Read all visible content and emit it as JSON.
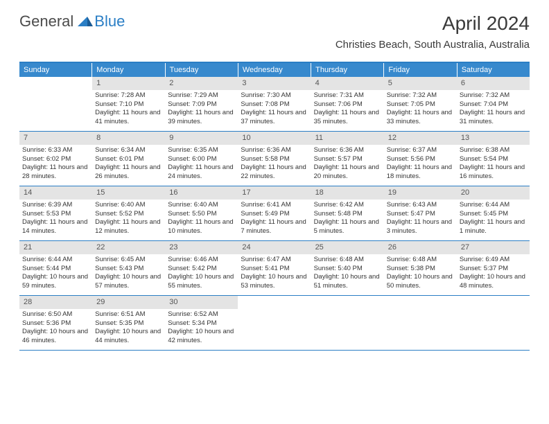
{
  "logo": {
    "textA": "General",
    "textB": "Blue"
  },
  "title": "April 2024",
  "location": "Christies Beach, South Australia, Australia",
  "colors": {
    "header_bg": "#3789cd",
    "header_text": "#ffffff",
    "border": "#2a7ec5",
    "daynum_bg": "#e4e4e4",
    "daynum_text": "#555555",
    "body_text": "#333333",
    "logo_gray": "#4b4b4b",
    "logo_blue": "#2a7ec5",
    "page_bg": "#ffffff"
  },
  "typography": {
    "title_fontsize": 28,
    "location_fontsize": 15,
    "dow_fontsize": 11,
    "daynum_fontsize": 11,
    "cell_fontsize": 9.5
  },
  "days_of_week": [
    "Sunday",
    "Monday",
    "Tuesday",
    "Wednesday",
    "Thursday",
    "Friday",
    "Saturday"
  ],
  "weeks": [
    [
      null,
      {
        "n": "1",
        "sr": "Sunrise: 7:28 AM",
        "ss": "Sunset: 7:10 PM",
        "dl": "Daylight: 11 hours and 41 minutes."
      },
      {
        "n": "2",
        "sr": "Sunrise: 7:29 AM",
        "ss": "Sunset: 7:09 PM",
        "dl": "Daylight: 11 hours and 39 minutes."
      },
      {
        "n": "3",
        "sr": "Sunrise: 7:30 AM",
        "ss": "Sunset: 7:08 PM",
        "dl": "Daylight: 11 hours and 37 minutes."
      },
      {
        "n": "4",
        "sr": "Sunrise: 7:31 AM",
        "ss": "Sunset: 7:06 PM",
        "dl": "Daylight: 11 hours and 35 minutes."
      },
      {
        "n": "5",
        "sr": "Sunrise: 7:32 AM",
        "ss": "Sunset: 7:05 PM",
        "dl": "Daylight: 11 hours and 33 minutes."
      },
      {
        "n": "6",
        "sr": "Sunrise: 7:32 AM",
        "ss": "Sunset: 7:04 PM",
        "dl": "Daylight: 11 hours and 31 minutes."
      }
    ],
    [
      {
        "n": "7",
        "sr": "Sunrise: 6:33 AM",
        "ss": "Sunset: 6:02 PM",
        "dl": "Daylight: 11 hours and 28 minutes."
      },
      {
        "n": "8",
        "sr": "Sunrise: 6:34 AM",
        "ss": "Sunset: 6:01 PM",
        "dl": "Daylight: 11 hours and 26 minutes."
      },
      {
        "n": "9",
        "sr": "Sunrise: 6:35 AM",
        "ss": "Sunset: 6:00 PM",
        "dl": "Daylight: 11 hours and 24 minutes."
      },
      {
        "n": "10",
        "sr": "Sunrise: 6:36 AM",
        "ss": "Sunset: 5:58 PM",
        "dl": "Daylight: 11 hours and 22 minutes."
      },
      {
        "n": "11",
        "sr": "Sunrise: 6:36 AM",
        "ss": "Sunset: 5:57 PM",
        "dl": "Daylight: 11 hours and 20 minutes."
      },
      {
        "n": "12",
        "sr": "Sunrise: 6:37 AM",
        "ss": "Sunset: 5:56 PM",
        "dl": "Daylight: 11 hours and 18 minutes."
      },
      {
        "n": "13",
        "sr": "Sunrise: 6:38 AM",
        "ss": "Sunset: 5:54 PM",
        "dl": "Daylight: 11 hours and 16 minutes."
      }
    ],
    [
      {
        "n": "14",
        "sr": "Sunrise: 6:39 AM",
        "ss": "Sunset: 5:53 PM",
        "dl": "Daylight: 11 hours and 14 minutes."
      },
      {
        "n": "15",
        "sr": "Sunrise: 6:40 AM",
        "ss": "Sunset: 5:52 PM",
        "dl": "Daylight: 11 hours and 12 minutes."
      },
      {
        "n": "16",
        "sr": "Sunrise: 6:40 AM",
        "ss": "Sunset: 5:50 PM",
        "dl": "Daylight: 11 hours and 10 minutes."
      },
      {
        "n": "17",
        "sr": "Sunrise: 6:41 AM",
        "ss": "Sunset: 5:49 PM",
        "dl": "Daylight: 11 hours and 7 minutes."
      },
      {
        "n": "18",
        "sr": "Sunrise: 6:42 AM",
        "ss": "Sunset: 5:48 PM",
        "dl": "Daylight: 11 hours and 5 minutes."
      },
      {
        "n": "19",
        "sr": "Sunrise: 6:43 AM",
        "ss": "Sunset: 5:47 PM",
        "dl": "Daylight: 11 hours and 3 minutes."
      },
      {
        "n": "20",
        "sr": "Sunrise: 6:44 AM",
        "ss": "Sunset: 5:45 PM",
        "dl": "Daylight: 11 hours and 1 minute."
      }
    ],
    [
      {
        "n": "21",
        "sr": "Sunrise: 6:44 AM",
        "ss": "Sunset: 5:44 PM",
        "dl": "Daylight: 10 hours and 59 minutes."
      },
      {
        "n": "22",
        "sr": "Sunrise: 6:45 AM",
        "ss": "Sunset: 5:43 PM",
        "dl": "Daylight: 10 hours and 57 minutes."
      },
      {
        "n": "23",
        "sr": "Sunrise: 6:46 AM",
        "ss": "Sunset: 5:42 PM",
        "dl": "Daylight: 10 hours and 55 minutes."
      },
      {
        "n": "24",
        "sr": "Sunrise: 6:47 AM",
        "ss": "Sunset: 5:41 PM",
        "dl": "Daylight: 10 hours and 53 minutes."
      },
      {
        "n": "25",
        "sr": "Sunrise: 6:48 AM",
        "ss": "Sunset: 5:40 PM",
        "dl": "Daylight: 10 hours and 51 minutes."
      },
      {
        "n": "26",
        "sr": "Sunrise: 6:48 AM",
        "ss": "Sunset: 5:38 PM",
        "dl": "Daylight: 10 hours and 50 minutes."
      },
      {
        "n": "27",
        "sr": "Sunrise: 6:49 AM",
        "ss": "Sunset: 5:37 PM",
        "dl": "Daylight: 10 hours and 48 minutes."
      }
    ],
    [
      {
        "n": "28",
        "sr": "Sunrise: 6:50 AM",
        "ss": "Sunset: 5:36 PM",
        "dl": "Daylight: 10 hours and 46 minutes."
      },
      {
        "n": "29",
        "sr": "Sunrise: 6:51 AM",
        "ss": "Sunset: 5:35 PM",
        "dl": "Daylight: 10 hours and 44 minutes."
      },
      {
        "n": "30",
        "sr": "Sunrise: 6:52 AM",
        "ss": "Sunset: 5:34 PM",
        "dl": "Daylight: 10 hours and 42 minutes."
      },
      null,
      null,
      null,
      null
    ]
  ]
}
